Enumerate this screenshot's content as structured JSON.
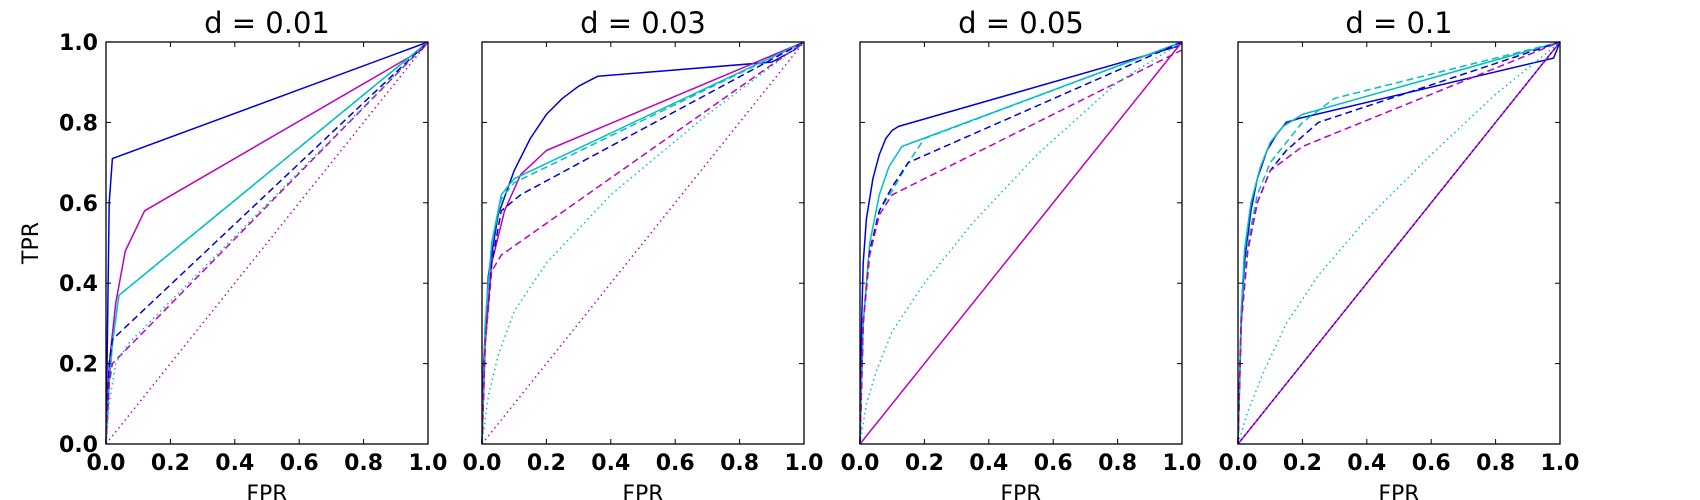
{
  "colors": {
    "blue": "#0000dd",
    "cyan": "#00c0c0",
    "magenta": "#c000c0"
  },
  "chart_data": [
    {
      "type": "line",
      "title": "d = 0.01",
      "xlabel": "FPR",
      "ylabel": "TPR",
      "xlim": [
        0,
        1
      ],
      "ylim": [
        0,
        1
      ],
      "xticks": [
        "0.0",
        "0.2",
        "0.4",
        "0.6",
        "0.8",
        "1.0"
      ],
      "yticks": [
        "0.0",
        "0.2",
        "0.4",
        "0.6",
        "0.8",
        "1.0"
      ],
      "grid": false,
      "series": [
        {
          "color": "#0000dd",
          "style": "solid",
          "x": [
            0,
            0.005,
            0.01,
            0.02,
            1.0
          ],
          "y": [
            0,
            0.3,
            0.6,
            0.71,
            1.0
          ]
        },
        {
          "color": "#c000c0",
          "style": "solid",
          "x": [
            0,
            0.01,
            0.03,
            0.06,
            0.12,
            0.98,
            1.0
          ],
          "y": [
            0,
            0.2,
            0.35,
            0.48,
            0.58,
            0.98,
            1.0
          ]
        },
        {
          "color": "#00c0c0",
          "style": "solid",
          "x": [
            0,
            0.01,
            0.02,
            0.04,
            1.0
          ],
          "y": [
            0,
            0.15,
            0.25,
            0.37,
            1.0
          ]
        },
        {
          "color": "#00c0c0",
          "style": "dashed",
          "x": [
            0,
            0.01,
            0.02,
            0.04,
            1.0
          ],
          "y": [
            0,
            0.15,
            0.25,
            0.37,
            1.0
          ]
        },
        {
          "color": "#0000dd",
          "style": "dashed",
          "x": [
            0,
            0.01,
            0.02,
            1.0
          ],
          "y": [
            0,
            0.2,
            0.26,
            1.0
          ]
        },
        {
          "color": "#c000c0",
          "style": "dashed",
          "x": [
            0,
            0.01,
            0.02,
            1.0
          ],
          "y": [
            0,
            0.15,
            0.2,
            1.0
          ]
        },
        {
          "color": "#00c0c0",
          "style": "dotted",
          "x": [
            0,
            0.01,
            0.03,
            0.07,
            1.0
          ],
          "y": [
            0,
            0.1,
            0.2,
            0.25,
            1.0
          ]
        },
        {
          "color": "#c000c0",
          "style": "dotted",
          "x": [
            0,
            1.0
          ],
          "y": [
            0,
            1.0
          ]
        }
      ]
    },
    {
      "type": "line",
      "title": "d = 0.03",
      "xlabel": "FPR",
      "ylabel": "",
      "xlim": [
        0,
        1
      ],
      "ylim": [
        0,
        1
      ],
      "xticks": [
        "0.0",
        "0.2",
        "0.4",
        "0.6",
        "0.8",
        "1.0"
      ],
      "yticks": [],
      "grid": false,
      "series": [
        {
          "color": "#0000dd",
          "style": "solid",
          "x": [
            0,
            0.005,
            0.02,
            0.05,
            0.1,
            0.15,
            0.2,
            0.25,
            0.3,
            0.36,
            0.9,
            0.97,
            1.0
          ],
          "y": [
            0,
            0.2,
            0.42,
            0.57,
            0.68,
            0.76,
            0.82,
            0.86,
            0.89,
            0.915,
            0.95,
            0.98,
            1.0
          ]
        },
        {
          "color": "#c000c0",
          "style": "solid",
          "x": [
            0,
            0.01,
            0.03,
            0.07,
            0.12,
            0.2,
            1.0
          ],
          "y": [
            0,
            0.25,
            0.45,
            0.58,
            0.67,
            0.73,
            1.0
          ]
        },
        {
          "color": "#00c0c0",
          "style": "solid",
          "x": [
            0,
            0.01,
            0.03,
            0.06,
            0.1,
            1.0
          ],
          "y": [
            0,
            0.3,
            0.5,
            0.62,
            0.66,
            1.0
          ]
        },
        {
          "color": "#00c0c0",
          "style": "dashed",
          "x": [
            0,
            0.01,
            0.03,
            0.06,
            0.1,
            1.0
          ],
          "y": [
            0,
            0.3,
            0.5,
            0.61,
            0.65,
            1.0
          ]
        },
        {
          "color": "#0000dd",
          "style": "dashed",
          "x": [
            0,
            0.01,
            0.03,
            0.06,
            0.12,
            1.0
          ],
          "y": [
            0,
            0.25,
            0.45,
            0.58,
            0.62,
            1.0
          ]
        },
        {
          "color": "#c000c0",
          "style": "dashed",
          "x": [
            0,
            0.01,
            0.03,
            0.06,
            1.0
          ],
          "y": [
            0,
            0.25,
            0.43,
            0.47,
            1.0
          ]
        },
        {
          "color": "#00c0c0",
          "style": "dotted",
          "x": [
            0,
            0.02,
            0.05,
            0.1,
            0.2,
            0.4,
            0.7,
            1.0
          ],
          "y": [
            0,
            0.12,
            0.22,
            0.33,
            0.45,
            0.62,
            0.82,
            1.0
          ]
        },
        {
          "color": "#c000c0",
          "style": "dotted",
          "x": [
            0,
            1.0
          ],
          "y": [
            0,
            1.0
          ]
        }
      ]
    },
    {
      "type": "line",
      "title": "d = 0.05",
      "xlabel": "FPR",
      "ylabel": "",
      "xlim": [
        0,
        1
      ],
      "ylim": [
        0,
        1
      ],
      "xticks": [
        "0.0",
        "0.2",
        "0.4",
        "0.6",
        "0.8",
        "1.0"
      ],
      "yticks": [],
      "grid": false,
      "series": [
        {
          "color": "#0000dd",
          "style": "solid",
          "x": [
            0,
            0.005,
            0.01,
            0.02,
            0.04,
            0.06,
            0.08,
            0.1,
            0.12,
            0.99,
            1.0
          ],
          "y": [
            0,
            0.3,
            0.45,
            0.56,
            0.66,
            0.72,
            0.76,
            0.78,
            0.79,
            0.99,
            1.0
          ]
        },
        {
          "color": "#c000c0",
          "style": "solid",
          "x": [
            0,
            0.98,
            1.0
          ],
          "y": [
            0,
            0.98,
            1.0
          ]
        },
        {
          "color": "#00c0c0",
          "style": "solid",
          "x": [
            0,
            0.01,
            0.03,
            0.06,
            0.09,
            0.13,
            1.0
          ],
          "y": [
            0,
            0.3,
            0.5,
            0.62,
            0.69,
            0.74,
            1.0
          ]
        },
        {
          "color": "#00c0c0",
          "style": "dashed",
          "x": [
            0,
            0.01,
            0.03,
            0.06,
            0.1,
            0.15,
            0.2,
            1.0
          ],
          "y": [
            0,
            0.3,
            0.48,
            0.58,
            0.63,
            0.7,
            0.76,
            1.0
          ]
        },
        {
          "color": "#0000dd",
          "style": "dashed",
          "x": [
            0,
            0.01,
            0.03,
            0.06,
            0.1,
            0.15,
            1.0
          ],
          "y": [
            0,
            0.3,
            0.48,
            0.58,
            0.64,
            0.7,
            1.0
          ]
        },
        {
          "color": "#c000c0",
          "style": "dashed",
          "x": [
            0,
            0.01,
            0.03,
            0.06,
            0.1,
            1.0
          ],
          "y": [
            0,
            0.3,
            0.47,
            0.57,
            0.62,
            0.98
          ]
        },
        {
          "color": "#00c0c0",
          "style": "dotted",
          "x": [
            0,
            0.02,
            0.05,
            0.1,
            0.2,
            0.35,
            0.55,
            0.8,
            1.0
          ],
          "y": [
            0,
            0.1,
            0.18,
            0.28,
            0.4,
            0.55,
            0.72,
            0.9,
            1.0
          ]
        }
      ]
    },
    {
      "type": "line",
      "title": "d = 0.1",
      "xlabel": "FPR",
      "ylabel": "",
      "xlim": [
        0,
        1
      ],
      "ylim": [
        0,
        1
      ],
      "xticks": [
        "0.0",
        "0.2",
        "0.4",
        "0.6",
        "0.8",
        "1.0"
      ],
      "yticks": [],
      "grid": false,
      "series": [
        {
          "color": "#0000dd",
          "style": "solid",
          "x": [
            0,
            0.01,
            0.02,
            0.04,
            0.06,
            0.09,
            0.12,
            0.15,
            0.19,
            0.98,
            1.0
          ],
          "y": [
            0,
            0.3,
            0.45,
            0.58,
            0.66,
            0.73,
            0.77,
            0.8,
            0.81,
            0.96,
            1.0
          ]
        },
        {
          "color": "#c000c0",
          "style": "solid",
          "x": [
            0,
            0.97,
            1.0
          ],
          "y": [
            0,
            0.97,
            1.0
          ]
        },
        {
          "color": "#00c0c0",
          "style": "solid",
          "x": [
            0,
            0.01,
            0.02,
            0.04,
            0.07,
            0.1,
            0.14,
            0.2,
            1.0
          ],
          "y": [
            0,
            0.33,
            0.48,
            0.6,
            0.69,
            0.75,
            0.79,
            0.82,
            1.0
          ]
        },
        {
          "color": "#00c0c0",
          "style": "dashed",
          "x": [
            0,
            0.01,
            0.03,
            0.06,
            0.1,
            0.15,
            0.2,
            0.3,
            1.0
          ],
          "y": [
            0,
            0.33,
            0.5,
            0.62,
            0.7,
            0.75,
            0.8,
            0.86,
            1.0
          ]
        },
        {
          "color": "#0000dd",
          "style": "dashed",
          "x": [
            0,
            0.01,
            0.03,
            0.06,
            0.1,
            0.15,
            0.25,
            1.0
          ],
          "y": [
            0,
            0.3,
            0.48,
            0.6,
            0.68,
            0.73,
            0.8,
            1.0
          ]
        },
        {
          "color": "#c000c0",
          "style": "dashed",
          "x": [
            0,
            0.01,
            0.03,
            0.06,
            0.1,
            0.2,
            1.0
          ],
          "y": [
            0,
            0.3,
            0.48,
            0.6,
            0.68,
            0.74,
            1.0
          ]
        },
        {
          "color": "#00c0c0",
          "style": "dotted",
          "x": [
            0,
            0.03,
            0.08,
            0.15,
            0.25,
            0.4,
            0.6,
            0.8,
            1.0
          ],
          "y": [
            0,
            0.08,
            0.18,
            0.3,
            0.42,
            0.56,
            0.72,
            0.87,
            1.0
          ]
        },
        {
          "color": "#0000dd",
          "style": "dotted",
          "x": [
            0,
            1.0
          ],
          "y": [
            0,
            1.0
          ]
        }
      ]
    }
  ]
}
